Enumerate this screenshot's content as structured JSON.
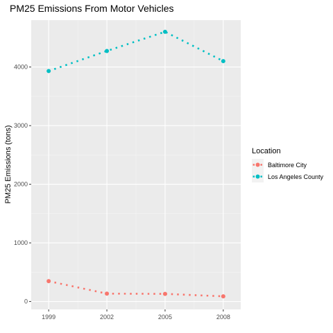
{
  "chart_data": {
    "type": "line",
    "title": "PM25 Emissions From Motor Vehicles",
    "xlabel": "",
    "ylabel": "PM25 Emissions (tons)",
    "x": [
      1999,
      2002,
      2005,
      2008
    ],
    "x_tick_labels": [
      "1999",
      "2002",
      "2005",
      "2008"
    ],
    "xlim": [
      1998.1,
      2008.9
    ],
    "y_ticks": [
      0,
      1000,
      2000,
      3000,
      4000
    ],
    "y_tick_labels": [
      "0",
      "1000",
      "2000",
      "3000",
      "4000"
    ],
    "ylim": [
      -135,
      4800
    ],
    "grid": true,
    "line_style": "dotted",
    "legend_title": "Location",
    "legend_position": "right",
    "series": [
      {
        "name": "Baltimore City",
        "color": "#F8766D",
        "values": [
          347,
          134,
          130,
          88
        ]
      },
      {
        "name": "Los Angeles County",
        "color": "#00BFC4",
        "values": [
          3931,
          4274,
          4601,
          4101
        ]
      }
    ]
  }
}
